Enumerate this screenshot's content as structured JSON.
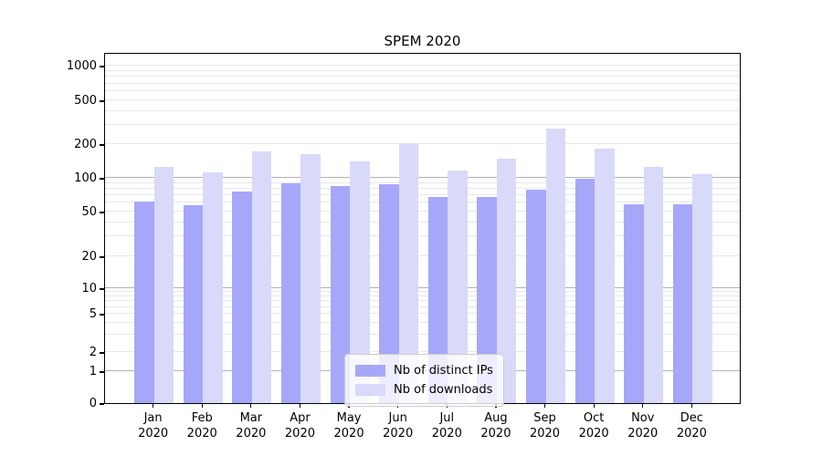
{
  "figure": {
    "title": "SPEM 2020"
  },
  "chart_data": {
    "type": "bar",
    "title": "SPEM 2020",
    "xlabel": "",
    "ylabel": "",
    "yscale": "symlog",
    "grid": true,
    "legend_position": "bottom-center",
    "yticks": [
      0,
      1,
      2,
      5,
      10,
      20,
      50,
      100,
      200,
      500,
      1000
    ],
    "ylim": [
      0,
      1400
    ],
    "categories": [
      [
        "Jan",
        "2020"
      ],
      [
        "Feb",
        "2020"
      ],
      [
        "Mar",
        "2020"
      ],
      [
        "Apr",
        "2020"
      ],
      [
        "May",
        "2020"
      ],
      [
        "Jun",
        "2020"
      ],
      [
        "Jul",
        "2020"
      ],
      [
        "Aug",
        "2020"
      ],
      [
        "Sep",
        "2020"
      ],
      [
        "Oct",
        "2020"
      ],
      [
        "Nov",
        "2020"
      ],
      [
        "Dec",
        "2020"
      ]
    ],
    "series": [
      {
        "name": "Nb of distinct IPs",
        "color": "#a7a7f9",
        "values": [
          62,
          57,
          75,
          89,
          85,
          87,
          68,
          67,
          78,
          99,
          58,
          58
        ]
      },
      {
        "name": "Nb of downloads",
        "color": "#d9d9f9",
        "values": [
          125,
          112,
          172,
          164,
          141,
          205,
          116,
          147,
          277,
          184,
          125,
          108
        ]
      }
    ]
  },
  "colors": {
    "bar_distinct_ips": "#a7a7f9",
    "bar_downloads": "#d9d9f9",
    "grid_major": "#b3b3b3",
    "grid_minor": "#e8e8e8",
    "axis": "#000000",
    "legend_border": "#cccccc"
  }
}
